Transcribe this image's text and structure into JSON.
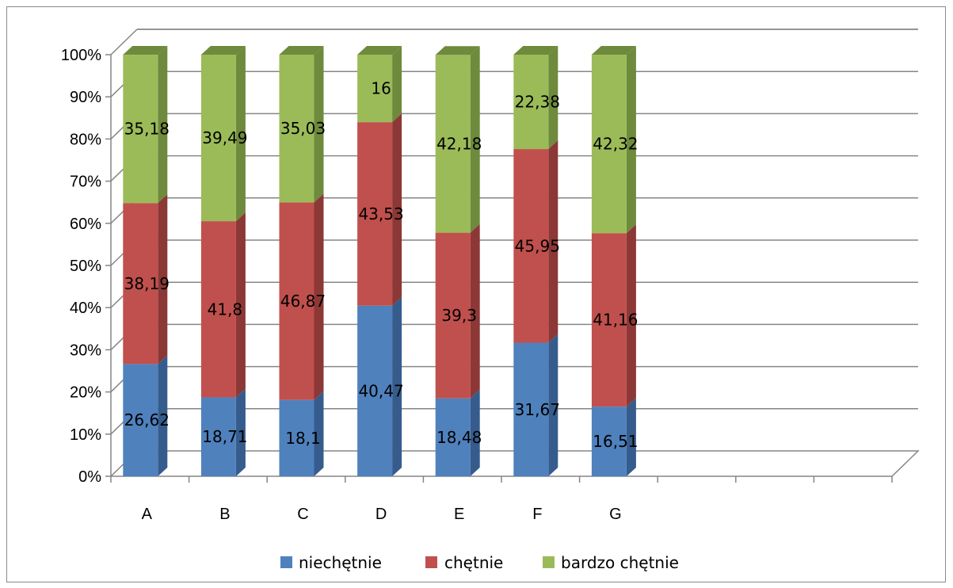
{
  "chart_data": {
    "type": "bar",
    "stacked": true,
    "normalized": true,
    "three_d": true,
    "categories": [
      "A",
      "B",
      "C",
      "D",
      "E",
      "F",
      "G"
    ],
    "slots": 10,
    "series": [
      {
        "name": "niechętnie",
        "color": "#4F81BD",
        "side_color": "#355C8C",
        "values": [
          26.62,
          18.71,
          18.1,
          40.47,
          18.48,
          31.67,
          16.51
        ],
        "labels": [
          "26,62",
          "18,71",
          "18,1",
          "40,47",
          "18,48",
          "31,67",
          "16,51"
        ]
      },
      {
        "name": "chętnie",
        "color": "#C0504D",
        "side_color": "#8C3836",
        "values": [
          38.19,
          41.8,
          46.87,
          43.53,
          39.3,
          45.95,
          41.16
        ],
        "labels": [
          "38,19",
          "41,8",
          "46,87",
          "43,53",
          "39,3",
          "45,95",
          "41,16"
        ]
      },
      {
        "name": "bardzo chętnie",
        "color": "#9BBB59",
        "side_color": "#6E8A3C",
        "values": [
          35.18,
          39.49,
          35.03,
          16,
          42.18,
          22.38,
          42.32
        ],
        "labels": [
          "35,18",
          "39,49",
          "35,03",
          "16",
          "42,18",
          "22,38",
          "42,32"
        ]
      }
    ],
    "y_ticks": [
      "0%",
      "10%",
      "20%",
      "30%",
      "40%",
      "50%",
      "60%",
      "70%",
      "80%",
      "90%",
      "100%"
    ],
    "ylim": [
      0,
      100
    ],
    "grid": true,
    "legend_position": "bottom"
  }
}
